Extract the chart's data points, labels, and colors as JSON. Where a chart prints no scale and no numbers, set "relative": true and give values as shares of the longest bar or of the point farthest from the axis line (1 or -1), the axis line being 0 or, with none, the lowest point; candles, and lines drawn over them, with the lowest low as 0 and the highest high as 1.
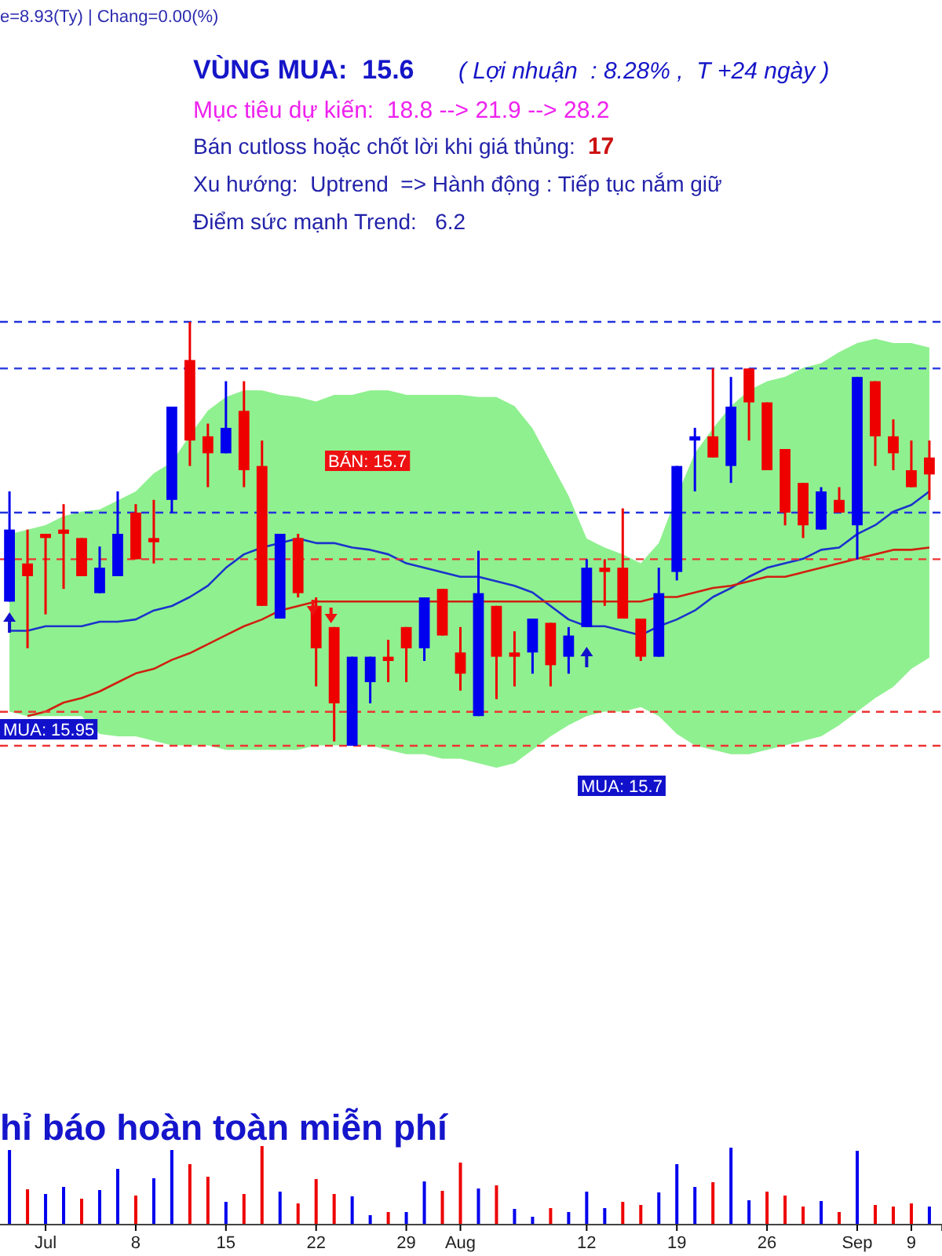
{
  "chart_data": [
    {
      "type": "candlestick",
      "relative": true,
      "title": "VÙNG MUA:  15.6",
      "subtitle": "( Lợi nhuận  : 8.28% ,  T +24 ngày )",
      "annotations": [
        "e=8.93(Ty) | Chang=0.00(%)",
        "Mục tiêu dự kiến:  18.8 --> 21.9 --> 28.2",
        "Bán cutloss hoặc chốt lời khi giá thủng:",
        "17",
        "Xu hướng:  Uptrend  => Hành động : Tiếp tục nắm giữ",
        "Điểm sức mạnh Trend:   6.2",
        "BÁN: 15.7",
        "MUA: 15.95",
        "MUA: 15.7"
      ],
      "categories": [
        null,
        null,
        null,
        null,
        null,
        null,
        null,
        null,
        null,
        null,
        null,
        null,
        null,
        null,
        null,
        null,
        null,
        null,
        null,
        null,
        null,
        null,
        null,
        null,
        null,
        null,
        null,
        null,
        null,
        null,
        null,
        null,
        null,
        null,
        null,
        null,
        null,
        null,
        null,
        null,
        null,
        null,
        null,
        null,
        null,
        null,
        null,
        null,
        null,
        null,
        null,
        null
      ],
      "ohlc": [
        [
          0.34,
          0.6,
          0.34,
          0.51
        ],
        [
          0.43,
          0.51,
          0.23,
          0.4
        ],
        [
          0.5,
          0.5,
          0.31,
          0.49
        ],
        [
          0.51,
          0.57,
          0.37,
          0.5
        ],
        [
          0.49,
          0.49,
          0.4,
          0.4
        ],
        [
          0.36,
          0.47,
          0.36,
          0.42
        ],
        [
          0.4,
          0.6,
          0.4,
          0.5
        ],
        [
          0.55,
          0.57,
          0.44,
          0.44
        ],
        [
          0.49,
          0.58,
          0.43,
          0.48
        ],
        [
          0.58,
          0.8,
          0.55,
          0.8
        ],
        [
          0.91,
          1,
          0.66,
          0.72
        ],
        [
          0.73,
          0.76,
          0.61,
          0.69
        ],
        [
          0.69,
          0.86,
          0.69,
          0.75
        ],
        [
          0.79,
          0.86,
          0.61,
          0.65
        ],
        [
          0.66,
          0.72,
          0.33,
          0.33
        ],
        [
          0.3,
          0.5,
          0.3,
          0.5
        ],
        [
          0.49,
          0.5,
          0.35,
          0.36
        ],
        [
          0.33,
          0.35,
          0.14,
          0.23
        ],
        [
          0.28,
          0.28,
          0.01,
          0.1
        ],
        [
          0,
          0.21,
          0,
          0.21
        ],
        [
          0.15,
          0.21,
          0.1,
          0.21
        ],
        [
          0.21,
          0.25,
          0.15,
          0.2
        ],
        [
          0.28,
          0.28,
          0.15,
          0.23
        ],
        [
          0.23,
          0.35,
          0.2,
          0.35
        ],
        [
          0.37,
          0.37,
          0.26,
          0.26
        ],
        [
          0.22,
          0.28,
          0.13,
          0.17
        ],
        [
          0.07,
          0.46,
          0.07,
          0.36
        ],
        [
          0.33,
          0.33,
          0.11,
          0.21
        ],
        [
          0.22,
          0.27,
          0.14,
          0.21
        ],
        [
          0.22,
          0.3,
          0.17,
          0.3
        ],
        [
          0.29,
          0.29,
          0.14,
          0.19
        ],
        [
          0.21,
          0.28,
          0.17,
          0.26
        ],
        [
          0.28,
          0.44,
          0.28,
          0.42
        ],
        [
          0.42,
          0.44,
          0.33,
          0.41
        ],
        [
          0.42,
          0.56,
          0.3,
          0.3
        ],
        [
          0.3,
          0.3,
          0.2,
          0.21
        ],
        [
          0.21,
          0.42,
          0.21,
          0.36
        ],
        [
          0.41,
          0.66,
          0.39,
          0.66
        ],
        [
          0.72,
          0.75,
          0.6,
          0.73
        ],
        [
          0.73,
          0.89,
          0.68,
          0.68
        ],
        [
          0.66,
          0.87,
          0.62,
          0.8
        ],
        [
          0.89,
          0.89,
          0.72,
          0.81
        ],
        [
          0.81,
          0.81,
          0.65,
          0.65
        ],
        [
          0.7,
          0.7,
          0.52,
          0.55
        ],
        [
          0.62,
          0.62,
          0.49,
          0.52
        ],
        [
          0.51,
          0.61,
          0.51,
          0.6
        ],
        [
          0.58,
          0.61,
          0.55,
          0.55
        ],
        [
          0.52,
          0.87,
          0.44,
          0.87
        ],
        [
          0.86,
          0.86,
          0.66,
          0.73
        ],
        [
          0.73,
          0.77,
          0.65,
          0.69
        ],
        [
          0.65,
          0.72,
          0.61,
          0.61
        ],
        [
          0.68,
          0.72,
          0.58,
          0.64
        ]
      ],
      "colors": [
        "#0000ee",
        "#ee0000",
        "#ee0000",
        "#ee0000",
        "#ee0000",
        "#0000ee",
        "#0000ee",
        "#ee0000",
        "#ee0000",
        "#0000ee",
        "#ee0000",
        "#ee0000",
        "#0000ee",
        "#ee0000",
        "#ee0000",
        "#0000ee",
        "#ee0000",
        "#ee0000",
        "#ee0000",
        "#0000ee",
        "#0000ee",
        "#ee0000",
        "#ee0000",
        "#0000ee",
        "#ee0000",
        "#ee0000",
        "#0000ee",
        "#ee0000",
        "#ee0000",
        "#0000ee",
        "#ee0000",
        "#0000ee",
        "#0000ee",
        "#ee0000",
        "#ee0000",
        "#ee0000",
        "#0000ee",
        "#0000ee",
        "#0000ee",
        "#ee0000",
        "#0000ee",
        "#ee0000",
        "#ee0000",
        "#ee0000",
        "#ee0000",
        "#0000ee",
        "#ee0000",
        "#0000ee",
        "#ee0000",
        "#ee0000",
        "#ee0000",
        "#ee0000"
      ],
      "ref_lines": [
        {
          "axis": "y",
          "value": 1,
          "color": "#2233dd",
          "line_style": "dashed"
        },
        {
          "axis": "y",
          "value": 0.89,
          "color": "#2233dd",
          "line_style": "dashed"
        },
        {
          "axis": "y",
          "value": 0.55,
          "color": "#2233dd",
          "line_style": "dashed"
        },
        {
          "axis": "y",
          "value": 0.44,
          "color": "#ee3333",
          "line_style": "dashed"
        },
        {
          "axis": "y",
          "value": 0.08,
          "color": "#ee3333",
          "line_style": "dashed"
        },
        {
          "axis": "y",
          "value": 0,
          "color": "#ee3333",
          "line_style": "dashed"
        }
      ]
    },
    {
      "type": "line",
      "relative": true,
      "categories": [
        null,
        null,
        null,
        null,
        null,
        null,
        null,
        null,
        null,
        null,
        null,
        null,
        null,
        null,
        null,
        null,
        null,
        null,
        null,
        null,
        null,
        null,
        null,
        null,
        null,
        null,
        null,
        null,
        null,
        null,
        null,
        null,
        null,
        null,
        null,
        null,
        null,
        null,
        null,
        null,
        null,
        null,
        null,
        null,
        null,
        null,
        null,
        null,
        null,
        null,
        null,
        null
      ],
      "series": [
        {
          "color": "#1a33cc",
          "values": [
            0.38,
            0.38,
            0.4,
            0.4,
            0.4,
            0.42,
            0.42,
            0.43,
            0.47,
            0.49,
            0.53,
            0.58,
            0.66,
            0.72,
            0.75,
            0.77,
            0.79,
            0.77,
            0.77,
            0.75,
            0.74,
            0.72,
            0.68,
            0.66,
            0.64,
            0.62,
            0.62,
            0.6,
            0.58,
            0.55,
            0.49,
            0.43,
            0.4,
            0.4,
            0.38,
            0.36,
            0.4,
            0.43,
            0.47,
            0.53,
            0.57,
            0.62,
            0.66,
            0.68,
            0.7,
            0.74,
            0.75,
            0.81,
            0.85,
            0.91,
            0.94,
            1
          ],
          "upper": [
            0.81,
            0.83,
            0.85,
            0.89,
            0.91,
            0.92,
            0.96,
            1,
            1.08,
            1.13,
            1.25,
            1.36,
            1.42,
            1.45,
            1.45,
            1.43,
            1.42,
            1.4,
            1.43,
            1.43,
            1.45,
            1.45,
            1.43,
            1.43,
            1.43,
            1.43,
            1.42,
            1.42,
            1.38,
            1.28,
            1.13,
            0.98,
            0.79,
            0.75,
            0.72,
            0.68,
            0.77,
            0.98,
            1.17,
            1.28,
            1.38,
            1.45,
            1.49,
            1.51,
            1.55,
            1.57,
            1.62,
            1.66,
            1.68,
            1.66,
            1.66,
            1.64
          ],
          "lower": [
            0.02,
            0,
            0,
            0,
            0,
            -0.08,
            -0.09,
            -0.09,
            -0.11,
            -0.13,
            -0.13,
            -0.13,
            -0.15,
            -0.15,
            -0.15,
            -0.15,
            -0.15,
            -0.13,
            -0.13,
            -0.13,
            -0.13,
            -0.15,
            -0.17,
            -0.17,
            -0.19,
            -0.19,
            -0.21,
            -0.23,
            -0.21,
            -0.15,
            -0.09,
            -0.04,
            0,
            0.02,
            0.02,
            0.04,
            0,
            -0.08,
            -0.13,
            -0.15,
            -0.17,
            -0.17,
            -0.15,
            -0.13,
            -0.11,
            -0.09,
            -0.04,
            0.02,
            0.08,
            0.13,
            0.21,
            0.26
          ]
        },
        {
          "color": "#d02010",
          "values": [
            null,
            0,
            0.02,
            0.06,
            0.08,
            0.11,
            0.15,
            0.19,
            0.21,
            0.25,
            0.28,
            0.32,
            0.36,
            0.4,
            0.43,
            0.47,
            0.49,
            0.51,
            0.51,
            0.51,
            0.51,
            0.51,
            0.51,
            0.51,
            0.51,
            0.51,
            0.51,
            0.51,
            0.51,
            0.51,
            0.51,
            0.51,
            0.51,
            0.51,
            0.51,
            0.51,
            0.53,
            0.53,
            0.55,
            0.57,
            0.58,
            0.6,
            0.62,
            0.62,
            0.64,
            0.66,
            0.68,
            0.7,
            0.72,
            0.74,
            0.74,
            0.75
          ]
        }
      ]
    },
    {
      "type": "bar",
      "relative": true,
      "tick_labels": "x",
      "annotations": [
        "hỉ báo hoàn toàn miễn phí"
      ],
      "categories": [
        null,
        null,
        "Jul",
        null,
        null,
        null,
        null,
        "8",
        null,
        null,
        null,
        null,
        "15",
        null,
        null,
        null,
        null,
        "22",
        null,
        null,
        null,
        null,
        "29",
        null,
        null,
        "Aug",
        null,
        null,
        null,
        null,
        null,
        null,
        "12",
        null,
        null,
        null,
        null,
        "19",
        null,
        null,
        null,
        null,
        "26",
        null,
        null,
        null,
        null,
        "Sep",
        null,
        null,
        "9",
        null
      ],
      "values": [
        0.95,
        0.45,
        0.39,
        0.48,
        0.33,
        0.44,
        0.71,
        0.37,
        0.59,
        0.95,
        0.77,
        0.61,
        0.29,
        0.39,
        1,
        0.42,
        0.27,
        0.58,
        0.39,
        0.36,
        0.12,
        0.16,
        0.16,
        0.55,
        0.43,
        0.79,
        0.46,
        0.5,
        0.2,
        0.1,
        0.21,
        0.16,
        0.42,
        0.21,
        0.29,
        0.25,
        0.41,
        0.77,
        0.48,
        0.54,
        0.98,
        0.31,
        0.42,
        0.37,
        0.23,
        0.3,
        0.16,
        0.94,
        0.25,
        0.23,
        0.27,
        0.23
      ],
      "colors": [
        "#0000ee",
        "#ee0000",
        "#0000ee",
        "#0000ee",
        "#ee0000",
        "#0000ee",
        "#0000ee",
        "#ee0000",
        "#0000ee",
        "#0000ee",
        "#ee0000",
        "#ee0000",
        "#0000ee",
        "#ee0000",
        "#ee0000",
        "#0000ee",
        "#ee0000",
        "#ee0000",
        "#ee0000",
        "#0000ee",
        "#0000ee",
        "#ee0000",
        "#0000ee",
        "#0000ee",
        "#ee0000",
        "#ee0000",
        "#0000ee",
        "#ee0000",
        "#0000ee",
        "#0000ee",
        "#ee0000",
        "#0000ee",
        "#0000ee",
        "#0000ee",
        "#ee0000",
        "#ee0000",
        "#0000ee",
        "#0000ee",
        "#0000ee",
        "#ee0000",
        "#0000ee",
        "#0000ee",
        "#ee0000",
        "#ee0000",
        "#ee0000",
        "#0000ee",
        "#ee0000",
        "#0000ee",
        "#ee0000",
        "#ee0000",
        "#ee0000",
        "#0000ee"
      ]
    }
  ]
}
